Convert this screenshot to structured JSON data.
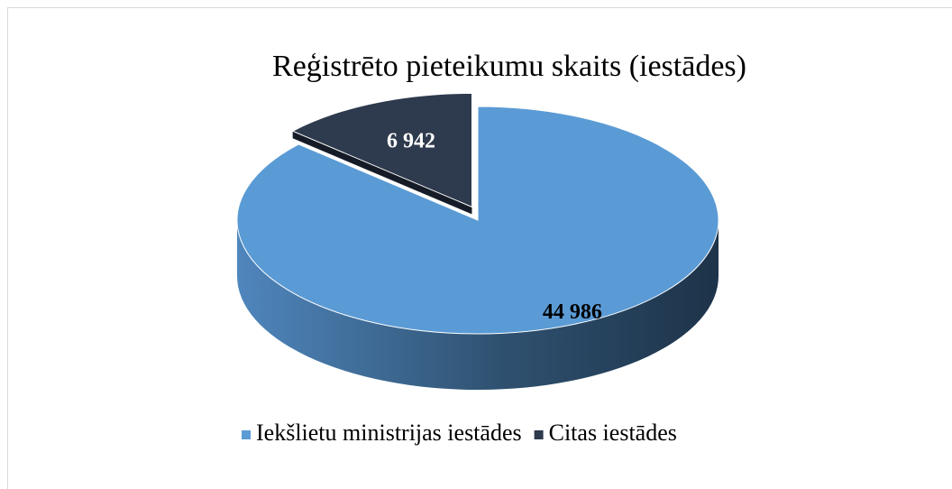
{
  "chart_data": {
    "type": "pie",
    "title": "Reģistrēto pieteikumu skaits (iestādes)",
    "categories": [
      "Iekšlietu ministrijas iestādes",
      "Citas iestādes"
    ],
    "values": [
      44986,
      6942
    ],
    "value_labels": [
      "44 986",
      "6 942"
    ],
    "colors": [
      "#5b9bd5",
      "#2e3a4d"
    ],
    "legend": "bottom"
  }
}
